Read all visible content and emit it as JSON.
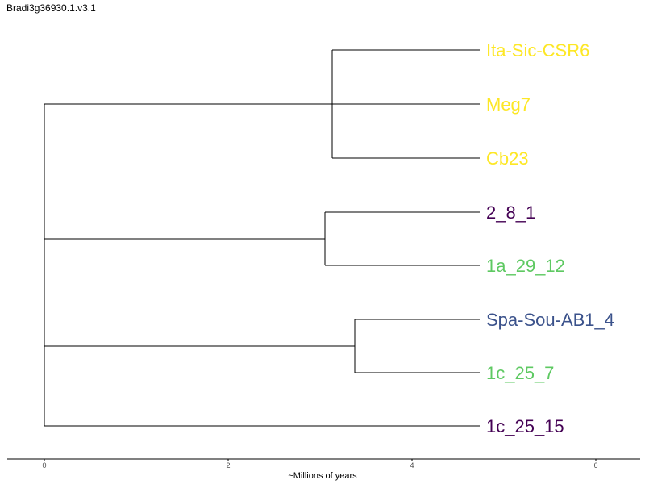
{
  "figure": {
    "title": "Bradi3g36930.1.v3.1",
    "axis_label": "~Millions of years"
  },
  "colors": {
    "yellow": "#fde725",
    "green": "#5ec962",
    "blue": "#3b528b",
    "purple": "#440154"
  },
  "tree": {
    "tips": [
      {
        "label": "Ita-Sic-CSR6",
        "color": "#fde725"
      },
      {
        "label": "Meg7",
        "color": "#fde725"
      },
      {
        "label": "Cb23",
        "color": "#fde725"
      },
      {
        "label": "2_8_1",
        "color": "#440154"
      },
      {
        "label": "1a_29_12",
        "color": "#5ec962"
      },
      {
        "label": "Spa-Sou-AB1_4",
        "color": "#3b528b"
      },
      {
        "label": "1c_25_7",
        "color": "#5ec962"
      },
      {
        "label": "1c_25_15",
        "color": "#440154"
      }
    ]
  },
  "axis": {
    "ticks": [
      "0",
      "2",
      "4",
      "6"
    ]
  }
}
